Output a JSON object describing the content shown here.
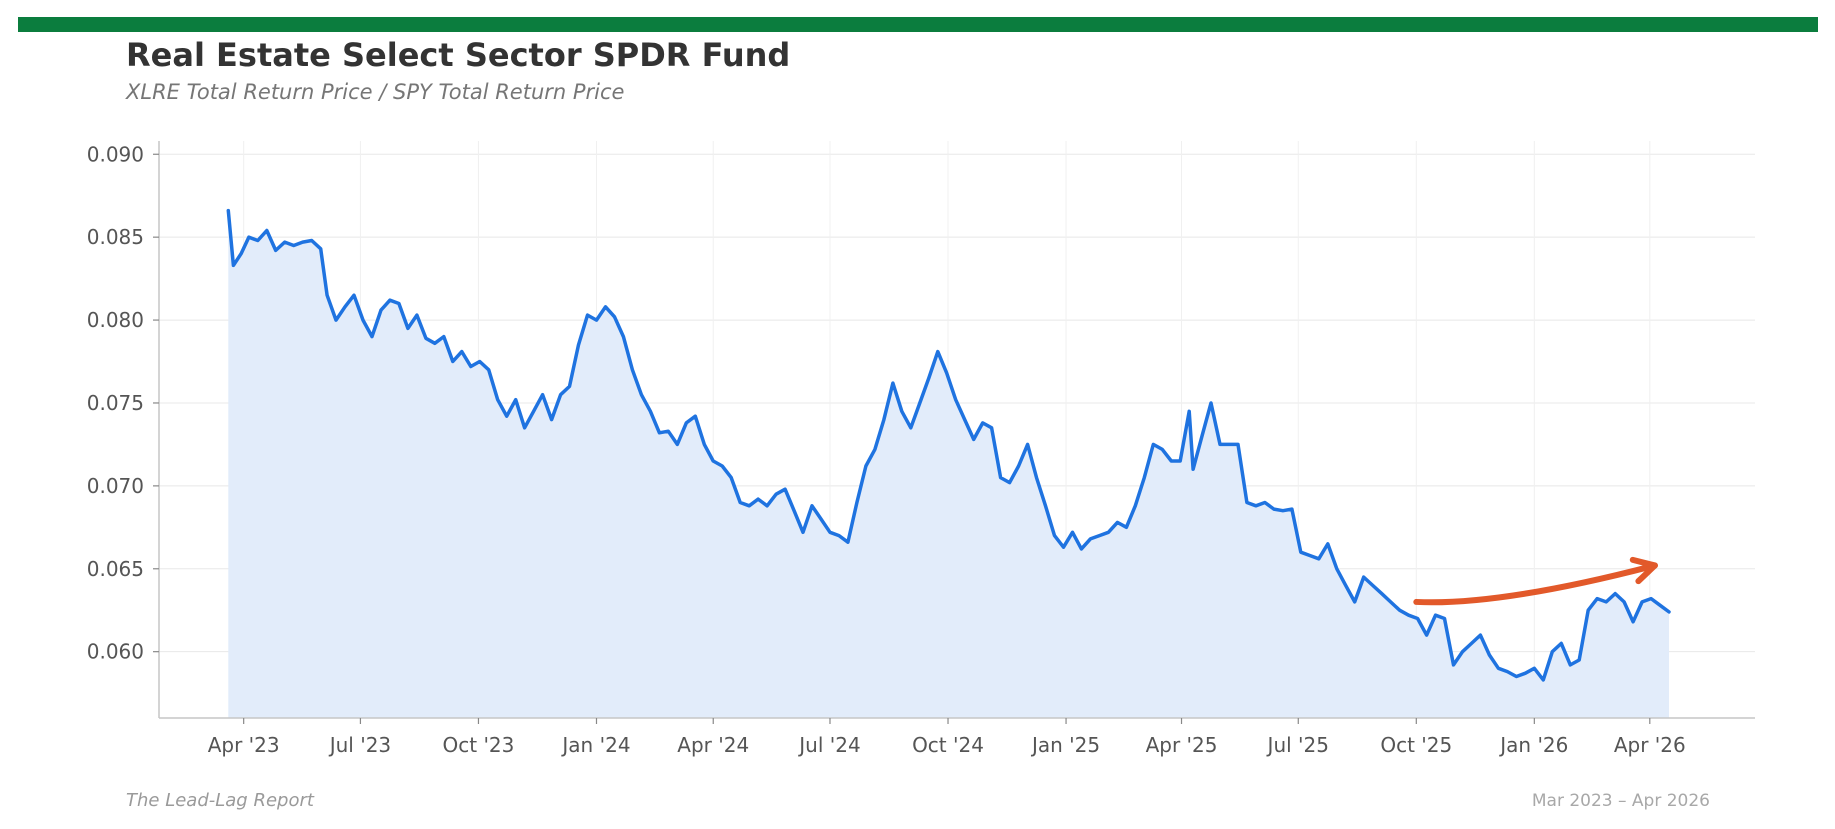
{
  "header": {
    "title": "Real Estate Select Sector SPDR Fund",
    "subtitle": "XLRE Total Return Price / SPY Total Return Price"
  },
  "footer": {
    "source": "The Lead-Lag Report",
    "date_range": "Mar 2023 – Apr 2026"
  },
  "colors": {
    "brand_bar": "#0b7d3e",
    "line": "#1f73e0",
    "area": "#e2ecfa",
    "arrow": "#e2592a",
    "grid": "#e8e8e8",
    "axis": "#c6c6c6"
  },
  "chart_data": {
    "type": "line",
    "title": "Real Estate Select Sector SPDR Fund",
    "subtitle": "XLRE Total Return Price / SPY Total Return Price",
    "xlabel": "",
    "ylabel": "",
    "grid": true,
    "fill_under_line": true,
    "legend": "none",
    "xlim": [
      "2023-01-25",
      "2026-06-22"
    ],
    "ylim": [
      0.056,
      0.0908
    ],
    "y_ticks": [
      0.06,
      0.065,
      0.07,
      0.075,
      0.08,
      0.085,
      0.09
    ],
    "y_tick_labels": [
      "0.060",
      "0.065",
      "0.070",
      "0.075",
      "0.080",
      "0.085",
      "0.090"
    ],
    "x_ticks": [
      "2023-04-01",
      "2023-07-01",
      "2023-10-01",
      "2024-01-01",
      "2024-04-01",
      "2024-07-01",
      "2024-10-01",
      "2025-01-01",
      "2025-04-01",
      "2025-07-01",
      "2025-10-01",
      "2026-01-01",
      "2026-04-01"
    ],
    "x_tick_labels": [
      "Apr '23",
      "Jul '23",
      "Oct '23",
      "Jan '24",
      "Apr '24",
      "Jul '24",
      "Oct '24",
      "Jan '25",
      "Apr '25",
      "Jul '25",
      "Oct '25",
      "Jan '26",
      "Apr '26"
    ],
    "series": [
      {
        "points": [
          [
            "2023-03-20",
            0.0866
          ],
          [
            "2023-03-24",
            0.0833
          ],
          [
            "2023-03-30",
            0.084
          ],
          [
            "2023-04-05",
            0.085
          ],
          [
            "2023-04-12",
            0.0848
          ],
          [
            "2023-04-19",
            0.0854
          ],
          [
            "2023-04-26",
            0.0842
          ],
          [
            "2023-05-03",
            0.0847
          ],
          [
            "2023-05-10",
            0.0845
          ],
          [
            "2023-05-17",
            0.0847
          ],
          [
            "2023-05-24",
            0.0848
          ],
          [
            "2023-05-31",
            0.0843
          ],
          [
            "2023-06-05",
            0.0815
          ],
          [
            "2023-06-12",
            0.08
          ],
          [
            "2023-06-19",
            0.0808
          ],
          [
            "2023-06-26",
            0.0815
          ],
          [
            "2023-07-03",
            0.08
          ],
          [
            "2023-07-10",
            0.079
          ],
          [
            "2023-07-17",
            0.0806
          ],
          [
            "2023-07-24",
            0.0812
          ],
          [
            "2023-07-31",
            0.081
          ],
          [
            "2023-08-07",
            0.0795
          ],
          [
            "2023-08-14",
            0.0803
          ],
          [
            "2023-08-21",
            0.0789
          ],
          [
            "2023-08-28",
            0.0786
          ],
          [
            "2023-09-04",
            0.079
          ],
          [
            "2023-09-11",
            0.0775
          ],
          [
            "2023-09-18",
            0.0781
          ],
          [
            "2023-09-25",
            0.0772
          ],
          [
            "2023-10-02",
            0.0775
          ],
          [
            "2023-10-09",
            0.077
          ],
          [
            "2023-10-16",
            0.0752
          ],
          [
            "2023-10-23",
            0.0742
          ],
          [
            "2023-10-30",
            0.0752
          ],
          [
            "2023-11-06",
            0.0735
          ],
          [
            "2023-11-13",
            0.0745
          ],
          [
            "2023-11-20",
            0.0755
          ],
          [
            "2023-11-27",
            0.074
          ],
          [
            "2023-12-04",
            0.0755
          ],
          [
            "2023-12-11",
            0.076
          ],
          [
            "2023-12-18",
            0.0785
          ],
          [
            "2023-12-25",
            0.0803
          ],
          [
            "2024-01-01",
            0.08
          ],
          [
            "2024-01-08",
            0.0808
          ],
          [
            "2024-01-15",
            0.0802
          ],
          [
            "2024-01-22",
            0.079
          ],
          [
            "2024-01-29",
            0.077
          ],
          [
            "2024-02-05",
            0.0755
          ],
          [
            "2024-02-12",
            0.0745
          ],
          [
            "2024-02-19",
            0.0732
          ],
          [
            "2024-02-26",
            0.0733
          ],
          [
            "2024-03-04",
            0.0725
          ],
          [
            "2024-03-11",
            0.0738
          ],
          [
            "2024-03-18",
            0.0742
          ],
          [
            "2024-03-25",
            0.0725
          ],
          [
            "2024-04-01",
            0.0715
          ],
          [
            "2024-04-08",
            0.0712
          ],
          [
            "2024-04-15",
            0.0705
          ],
          [
            "2024-04-22",
            0.069
          ],
          [
            "2024-04-29",
            0.0688
          ],
          [
            "2024-05-06",
            0.0692
          ],
          [
            "2024-05-13",
            0.0688
          ],
          [
            "2024-05-20",
            0.0695
          ],
          [
            "2024-05-27",
            0.0698
          ],
          [
            "2024-06-03",
            0.0685
          ],
          [
            "2024-06-10",
            0.0672
          ],
          [
            "2024-06-17",
            0.0688
          ],
          [
            "2024-06-24",
            0.068
          ],
          [
            "2024-07-01",
            0.0672
          ],
          [
            "2024-07-08",
            0.067
          ],
          [
            "2024-07-15",
            0.0666
          ],
          [
            "2024-07-22",
            0.069
          ],
          [
            "2024-07-29",
            0.0712
          ],
          [
            "2024-08-05",
            0.0722
          ],
          [
            "2024-08-12",
            0.074
          ],
          [
            "2024-08-19",
            0.0762
          ],
          [
            "2024-08-26",
            0.0745
          ],
          [
            "2024-09-02",
            0.0735
          ],
          [
            "2024-09-09",
            0.075
          ],
          [
            "2024-09-16",
            0.0765
          ],
          [
            "2024-09-23",
            0.0781
          ],
          [
            "2024-09-30",
            0.0768
          ],
          [
            "2024-10-07",
            0.0752
          ],
          [
            "2024-10-14",
            0.074
          ],
          [
            "2024-10-21",
            0.0728
          ],
          [
            "2024-10-28",
            0.0738
          ],
          [
            "2024-11-04",
            0.0735
          ],
          [
            "2024-11-11",
            0.0705
          ],
          [
            "2024-11-18",
            0.0702
          ],
          [
            "2024-11-25",
            0.0712
          ],
          [
            "2024-12-02",
            0.0725
          ],
          [
            "2024-12-09",
            0.0705
          ],
          [
            "2024-12-16",
            0.0688
          ],
          [
            "2024-12-23",
            0.067
          ],
          [
            "2024-12-30",
            0.0663
          ],
          [
            "2025-01-06",
            0.0672
          ],
          [
            "2025-01-13",
            0.0662
          ],
          [
            "2025-01-20",
            0.0668
          ],
          [
            "2025-01-27",
            0.067
          ],
          [
            "2025-02-03",
            0.0672
          ],
          [
            "2025-02-10",
            0.0678
          ],
          [
            "2025-02-17",
            0.0675
          ],
          [
            "2025-02-24",
            0.0688
          ],
          [
            "2025-03-03",
            0.0705
          ],
          [
            "2025-03-10",
            0.0725
          ],
          [
            "2025-03-17",
            0.0722
          ],
          [
            "2025-03-24",
            0.0715
          ],
          [
            "2025-03-31",
            0.0715
          ],
          [
            "2025-04-07",
            0.0745
          ],
          [
            "2025-04-10",
            0.071
          ],
          [
            "2025-04-17",
            0.073
          ],
          [
            "2025-04-24",
            0.075
          ],
          [
            "2025-05-01",
            0.0725
          ],
          [
            "2025-05-08",
            0.0725
          ],
          [
            "2025-05-15",
            0.0725
          ],
          [
            "2025-05-22",
            0.069
          ],
          [
            "2025-05-29",
            0.0688
          ],
          [
            "2025-06-05",
            0.069
          ],
          [
            "2025-06-12",
            0.0686
          ],
          [
            "2025-06-19",
            0.0685
          ],
          [
            "2025-06-26",
            0.0686
          ],
          [
            "2025-07-03",
            0.066
          ],
          [
            "2025-07-10",
            0.0658
          ],
          [
            "2025-07-17",
            0.0656
          ],
          [
            "2025-07-24",
            0.0665
          ],
          [
            "2025-07-31",
            0.065
          ],
          [
            "2025-08-07",
            0.064
          ],
          [
            "2025-08-14",
            0.063
          ],
          [
            "2025-08-21",
            0.0645
          ],
          [
            "2025-08-28",
            0.064
          ],
          [
            "2025-09-04",
            0.0635
          ],
          [
            "2025-09-11",
            0.063
          ],
          [
            "2025-09-18",
            0.0625
          ],
          [
            "2025-09-25",
            0.0622
          ],
          [
            "2025-10-02",
            0.062
          ],
          [
            "2025-10-09",
            0.061
          ],
          [
            "2025-10-16",
            0.0622
          ],
          [
            "2025-10-23",
            0.062
          ],
          [
            "2025-10-30",
            0.0592
          ],
          [
            "2025-11-06",
            0.06
          ],
          [
            "2025-11-13",
            0.0605
          ],
          [
            "2025-11-20",
            0.061
          ],
          [
            "2025-11-27",
            0.0598
          ],
          [
            "2025-12-04",
            0.059
          ],
          [
            "2025-12-11",
            0.0588
          ],
          [
            "2025-12-18",
            0.0585
          ],
          [
            "2025-12-25",
            0.0587
          ],
          [
            "2026-01-01",
            0.059
          ],
          [
            "2026-01-08",
            0.0583
          ],
          [
            "2026-01-15",
            0.06
          ],
          [
            "2026-01-22",
            0.0605
          ],
          [
            "2026-01-29",
            0.0592
          ],
          [
            "2026-02-05",
            0.0595
          ],
          [
            "2026-02-12",
            0.0625
          ],
          [
            "2026-02-19",
            0.0632
          ],
          [
            "2026-02-26",
            0.063
          ],
          [
            "2026-03-05",
            0.0635
          ],
          [
            "2026-03-12",
            0.063
          ],
          [
            "2026-03-19",
            0.0618
          ],
          [
            "2026-03-26",
            0.063
          ],
          [
            "2026-04-02",
            0.0632
          ],
          [
            "2026-04-09",
            0.0628
          ],
          [
            "2026-04-16",
            0.0624
          ]
        ]
      }
    ],
    "annotations": [
      {
        "type": "arrow",
        "from": [
          "2025-10-01",
          0.063
        ],
        "to": [
          "2026-04-05",
          0.0652
        ]
      }
    ]
  }
}
